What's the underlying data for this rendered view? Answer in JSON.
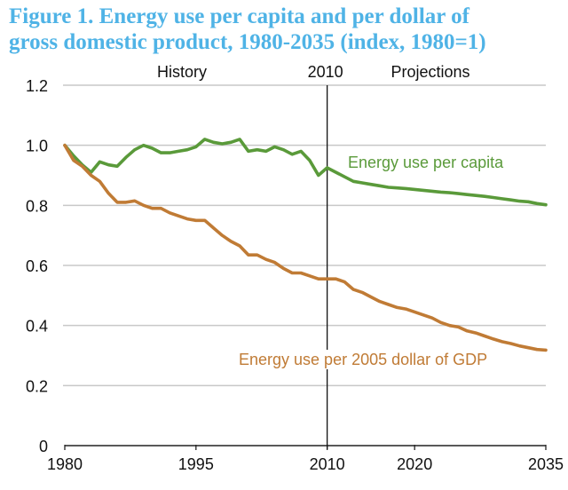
{
  "title": {
    "line1": "Figure 1. Energy use per capita and per dollar of",
    "line2": "gross domestic product, 1980-2035 (index, 1980=1)"
  },
  "annotations": {
    "history": "History",
    "divider_year": "2010",
    "projections": "Projections"
  },
  "chart_data": {
    "type": "line",
    "title": "Figure 1. Energy use per capita and per dollar of gross domestic product, 1980-2035 (index, 1980=1)",
    "xlabel": "",
    "ylabel": "",
    "xlim": [
      1980,
      2035
    ],
    "ylim": [
      0,
      1.2
    ],
    "grid": true,
    "x_ticks": [
      1980,
      1995,
      2010,
      2020,
      2035
    ],
    "x_tick_labels": [
      "1980",
      "1995",
      "2010",
      "2020",
      "2035"
    ],
    "y_ticks": [
      0,
      0.2,
      0.4,
      0.6,
      0.8,
      1.0,
      1.2
    ],
    "y_tick_labels": [
      "0",
      "0.2",
      "0.4",
      "0.6",
      "0.8",
      "1.0",
      "1.2"
    ],
    "divider": {
      "x": 2010,
      "left_label": "History",
      "center_label": "2010",
      "right_label": "Projections"
    },
    "legend": "inline-labels",
    "x": [
      1980,
      1981,
      1982,
      1983,
      1984,
      1985,
      1986,
      1987,
      1988,
      1989,
      1990,
      1991,
      1992,
      1993,
      1994,
      1995,
      1996,
      1997,
      1998,
      1999,
      2000,
      2001,
      2002,
      2003,
      2004,
      2005,
      2006,
      2007,
      2008,
      2009,
      2010,
      2011,
      2012,
      2013,
      2014,
      2015,
      2016,
      2017,
      2018,
      2019,
      2020,
      2021,
      2022,
      2023,
      2024,
      2025,
      2026,
      2027,
      2028,
      2029,
      2030,
      2031,
      2032,
      2033,
      2034,
      2035
    ],
    "series": [
      {
        "name": "Energy use per capita",
        "color": "#5a9a3a",
        "values": [
          1.0,
          0.965,
          0.935,
          0.91,
          0.945,
          0.935,
          0.93,
          0.96,
          0.985,
          1.0,
          0.99,
          0.975,
          0.975,
          0.98,
          0.985,
          0.995,
          1.02,
          1.01,
          1.005,
          1.01,
          1.02,
          0.98,
          0.985,
          0.98,
          0.995,
          0.985,
          0.97,
          0.98,
          0.95,
          0.9,
          0.925,
          0.91,
          0.895,
          0.88,
          0.875,
          0.87,
          0.865,
          0.86,
          0.858,
          0.856,
          0.853,
          0.85,
          0.847,
          0.844,
          0.842,
          0.839,
          0.836,
          0.833,
          0.83,
          0.826,
          0.822,
          0.818,
          0.814,
          0.812,
          0.806,
          0.802
        ]
      },
      {
        "name": "Energy use per 2005 dollar of GDP",
        "color": "#c07b35",
        "values": [
          1.0,
          0.95,
          0.93,
          0.9,
          0.88,
          0.84,
          0.81,
          0.81,
          0.815,
          0.8,
          0.79,
          0.79,
          0.775,
          0.765,
          0.755,
          0.75,
          0.75,
          0.725,
          0.7,
          0.68,
          0.665,
          0.635,
          0.635,
          0.62,
          0.61,
          0.59,
          0.575,
          0.575,
          0.565,
          0.555,
          0.555,
          0.555,
          0.545,
          0.52,
          0.51,
          0.495,
          0.48,
          0.47,
          0.46,
          0.455,
          0.445,
          0.435,
          0.425,
          0.41,
          0.4,
          0.395,
          0.382,
          0.375,
          0.365,
          0.355,
          0.346,
          0.34,
          0.332,
          0.326,
          0.32,
          0.318
        ]
      }
    ],
    "series_labels": [
      "Energy use per capita",
      "Energy use per 2005 dollar of GDP"
    ]
  }
}
